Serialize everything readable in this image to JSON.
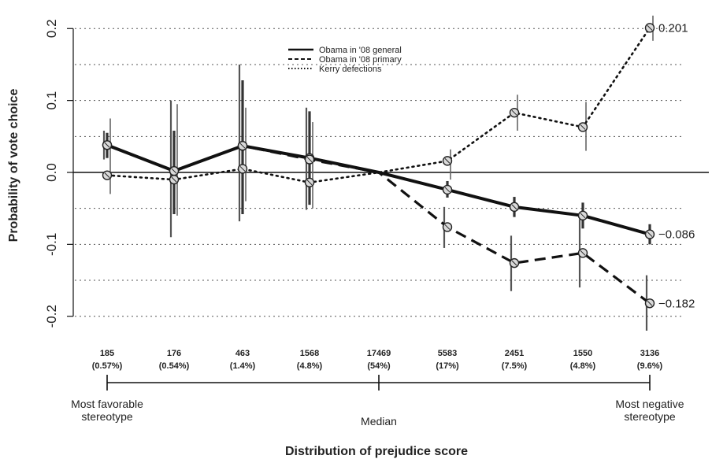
{
  "chart_data": {
    "type": "line",
    "title": "",
    "ylabel": "Probability of vote choice",
    "xlabel": "Distribution of prejudice score",
    "ylim": [
      -0.22,
      0.22
    ],
    "yticks": [
      -0.2,
      -0.1,
      0.0,
      0.1,
      0.2
    ],
    "ytick_labels": [
      "-0.2",
      "-0.1",
      "0.0",
      "0.1",
      "0.2"
    ],
    "grid": "dotted horizontal",
    "legend_position": "top-center",
    "categories": [
      {
        "count": "185",
        "pct": "(0.57%)"
      },
      {
        "count": "176",
        "pct": "(0.54%)"
      },
      {
        "count": "463",
        "pct": "(1.4%)"
      },
      {
        "count": "1568",
        "pct": "(4.8%)"
      },
      {
        "count": "17469",
        "pct": "(54%)"
      },
      {
        "count": "5583",
        "pct": "(17%)"
      },
      {
        "count": "2451",
        "pct": "(7.5%)"
      },
      {
        "count": "1550",
        "pct": "(4.8%)"
      },
      {
        "count": "3136",
        "pct": "(9.6%)"
      }
    ],
    "series": [
      {
        "name": "Obama in '08 general",
        "style": "solid",
        "values": [
          0.038,
          0.002,
          0.037,
          0.02,
          0.0,
          -0.024,
          -0.048,
          -0.06,
          -0.086
        ],
        "ci_low": [
          0.02,
          -0.058,
          -0.058,
          -0.045,
          0.0,
          -0.035,
          -0.062,
          -0.078,
          -0.1
        ],
        "ci_high": [
          0.055,
          0.058,
          0.128,
          0.085,
          0.0,
          -0.012,
          -0.034,
          -0.042,
          -0.072
        ]
      },
      {
        "name": "Obama in '08 primary",
        "style": "dashed",
        "values": [
          0.038,
          0.002,
          0.037,
          0.018,
          0.0,
          -0.076,
          -0.126,
          -0.112,
          -0.182
        ],
        "ci_low": [
          0.018,
          -0.09,
          -0.068,
          -0.052,
          0.0,
          -0.105,
          -0.165,
          -0.16,
          -0.22
        ],
        "ci_high": [
          0.058,
          0.1,
          0.15,
          0.09,
          0.0,
          -0.048,
          -0.088,
          -0.065,
          -0.143
        ]
      },
      {
        "name": "Kerry defections",
        "style": "dotted",
        "values": [
          -0.004,
          -0.01,
          0.005,
          -0.014,
          0.0,
          0.016,
          0.083,
          0.063,
          0.201
        ],
        "ci_low": [
          -0.03,
          -0.06,
          -0.04,
          -0.05,
          0.0,
          -0.01,
          0.058,
          0.03,
          0.183
        ],
        "ci_high": [
          0.075,
          0.095,
          0.09,
          0.07,
          0.0,
          0.032,
          0.108,
          0.098,
          0.218
        ]
      }
    ],
    "end_labels": [
      "0.201",
      "−0.086",
      "−0.182"
    ],
    "bracket_labels": {
      "left": [
        "Most favorable",
        "stereotype"
      ],
      "center": [
        "Median"
      ],
      "right": [
        "Most negative",
        "stereotype"
      ]
    }
  }
}
